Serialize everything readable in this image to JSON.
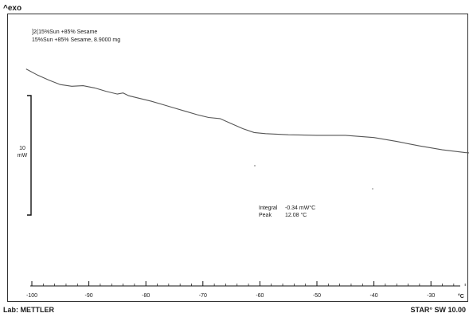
{
  "chart_data": {
    "type": "line",
    "header": "^exo",
    "curve_ids": [
      "]2(15%Sun +85% Sesame",
      "15%Sun +85% Sesame, 8.9000 mg"
    ],
    "xlabel": "°C",
    "xlim": [
      -101,
      46
    ],
    "x_ticks": [
      -100,
      -90,
      -80,
      -70,
      -60,
      -50,
      -40,
      -30,
      -20,
      -10,
      0,
      10,
      20,
      30,
      40
    ],
    "y_scale_bar": {
      "value": "10",
      "unit": "mW"
    },
    "series": [
      {
        "x": [
          -101,
          -99,
          -97,
          -95,
          -93,
          -91,
          -89,
          -87,
          -85,
          -84,
          -83,
          -81,
          -79,
          -77,
          -75,
          -73,
          -71,
          -69,
          -67,
          -65,
          -63,
          -61,
          -59,
          -55,
          -50,
          -45,
          -40,
          -36,
          -32,
          -28,
          -24,
          -20,
          -16,
          -13,
          -12,
          -11.5,
          -11,
          -10.5,
          -10,
          -5,
          0,
          5,
          10,
          15,
          20,
          25,
          30,
          35,
          40,
          43,
          45,
          45.3,
          45.6
        ],
        "y": [
          15.2,
          14.1,
          13.2,
          12.4,
          12.1,
          12.2,
          11.8,
          11.2,
          10.7,
          10.9,
          10.4,
          9.9,
          9.4,
          8.8,
          8.2,
          7.6,
          7.0,
          6.5,
          6.3,
          5.4,
          4.5,
          3.8,
          3.6,
          3.4,
          3.3,
          3.3,
          2.9,
          2.2,
          1.4,
          0.7,
          0.2,
          -0.1,
          -0.3,
          -0.2,
          0.6,
          2.1,
          1.2,
          -0.7,
          -1.5,
          -1.9,
          -2.4,
          -2.9,
          -3.4,
          -3.9,
          -4.4,
          -4.9,
          -5.4,
          -5.9,
          -6.4,
          -6.7,
          -7.2,
          -14.0,
          -20.5
        ]
      }
    ],
    "integration": {
      "x_start": 6.5,
      "x_end": 16.5,
      "peak_x": 12.08,
      "labels": [
        "Integral",
        "Peak"
      ],
      "values": [
        "-0.34 mW°C",
        "12.08 °C"
      ]
    },
    "footer_left": "Lab: METTLER",
    "footer_right": "STAR° SW 10.00"
  }
}
